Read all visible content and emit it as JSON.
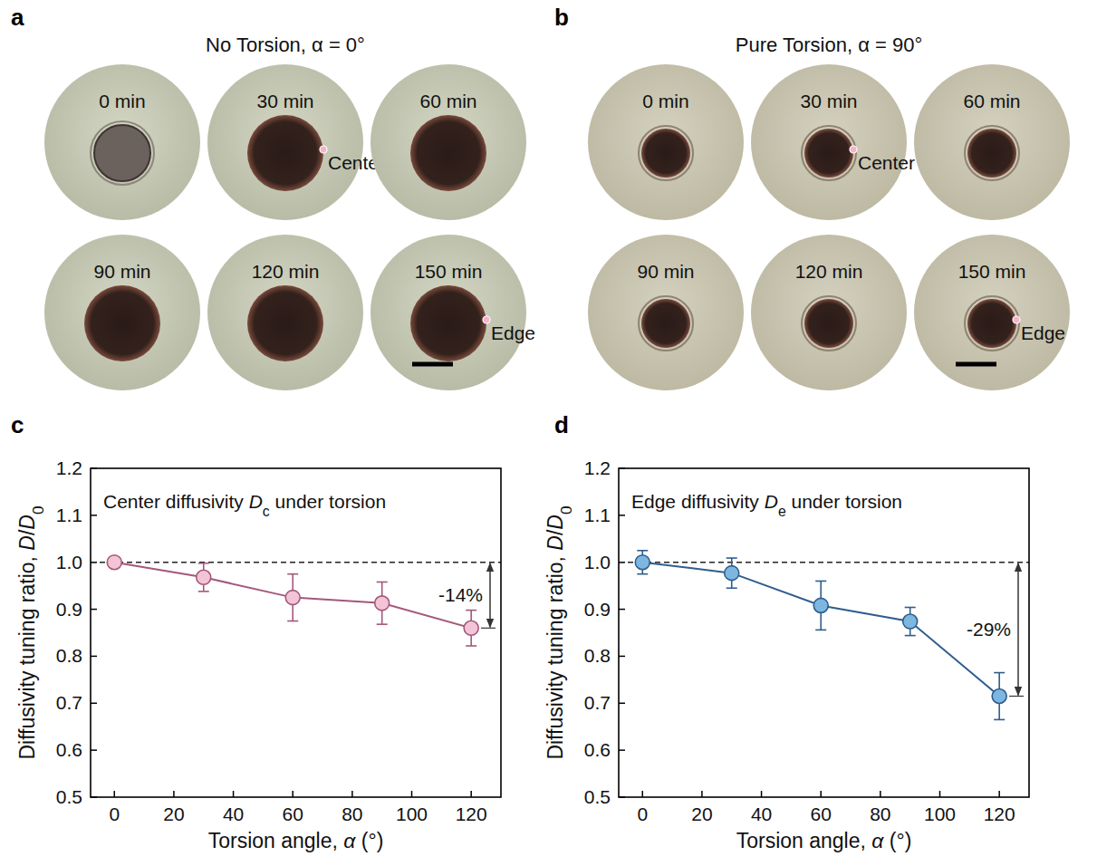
{
  "photo_panels": [
    {
      "panel_label": "a",
      "title": "No Torsion, α = 0°",
      "images": [
        {
          "time": "0 min"
        },
        {
          "time": "30 min",
          "marker_label": "Center"
        },
        {
          "time": "60 min"
        },
        {
          "time": "90 min"
        },
        {
          "time": "120 min"
        },
        {
          "time": "150 min",
          "marker_label": "Edge"
        }
      ]
    },
    {
      "panel_label": "b",
      "title": "Pure Torsion, α = 90°",
      "images": [
        {
          "time": "0 min"
        },
        {
          "time": "30 min",
          "marker_label": "Center"
        },
        {
          "time": "60 min"
        },
        {
          "time": "90 min"
        },
        {
          "time": "120 min"
        },
        {
          "time": "150 min",
          "marker_label": "Edge"
        }
      ]
    }
  ],
  "chart_data": [
    {
      "type": "line",
      "panel_label": "c",
      "title": [
        {
          "text": "Center diffusivity "
        },
        {
          "text": "D",
          "italic": true
        },
        {
          "text": "c",
          "sub": true
        },
        {
          "text": " under torsion"
        }
      ],
      "xlabel": [
        {
          "text": "Torsion angle, "
        },
        {
          "text": "α",
          "italic": true
        },
        {
          "text": " (°)"
        }
      ],
      "ylabel": [
        {
          "text": "Diffusivity tuning ratio, "
        },
        {
          "text": "D",
          "italic": true
        },
        {
          "text": "/"
        },
        {
          "text": "D",
          "italic": true
        },
        {
          "text": "0",
          "sub": true
        }
      ],
      "x": [
        0,
        30,
        60,
        90,
        120
      ],
      "xlim": [
        -8,
        130
      ],
      "xticks": [
        0,
        20,
        40,
        60,
        80,
        100,
        120
      ],
      "ylim": [
        0.5,
        1.2
      ],
      "yticks": [
        0.5,
        0.6,
        0.7,
        0.8,
        0.9,
        {
          "value": 1,
          "label": "1.0"
        },
        1.1,
        1.2
      ],
      "reference_line": 1,
      "series": [
        {
          "color": "#a3587a",
          "marker": "circle",
          "values": [
            1.0,
            0.968,
            0.925,
            0.913,
            0.86
          ],
          "errors": [
            0.005,
            0.03,
            0.05,
            0.045,
            0.038
          ]
        }
      ],
      "annotations": [
        {
          "text": "-14%"
        }
      ]
    },
    {
      "type": "line",
      "panel_label": "d",
      "title": [
        {
          "text": "Edge diffusivity "
        },
        {
          "text": "D",
          "italic": true
        },
        {
          "text": "e",
          "sub": true
        },
        {
          "text": " under torsion"
        }
      ],
      "xlabel": [
        {
          "text": "Torsion angle, "
        },
        {
          "text": "α",
          "italic": true
        },
        {
          "text": " (°)"
        }
      ],
      "ylabel": [
        {
          "text": "Diffusivity tuning ratio, "
        },
        {
          "text": "D",
          "italic": true
        },
        {
          "text": "/"
        },
        {
          "text": "D",
          "italic": true
        },
        {
          "text": "0",
          "sub": true
        }
      ],
      "x": [
        0,
        30,
        60,
        90,
        120
      ],
      "xlim": [
        -8,
        130
      ],
      "xticks": [
        0,
        20,
        40,
        60,
        80,
        100,
        120
      ],
      "ylim": [
        0.5,
        1.2
      ],
      "yticks": [
        0.5,
        0.6,
        0.7,
        0.8,
        0.9,
        {
          "value": 1,
          "label": "1.0"
        },
        1.1,
        1.2
      ],
      "reference_line": 1,
      "series": [
        {
          "color": "#2f5d8e",
          "marker": "circle",
          "values": [
            1.0,
            0.977,
            0.908,
            0.874,
            0.715
          ],
          "errors": [
            0.025,
            0.032,
            0.052,
            0.03,
            0.05
          ]
        }
      ],
      "annotations": [
        {
          "text": "-29%"
        }
      ]
    }
  ]
}
